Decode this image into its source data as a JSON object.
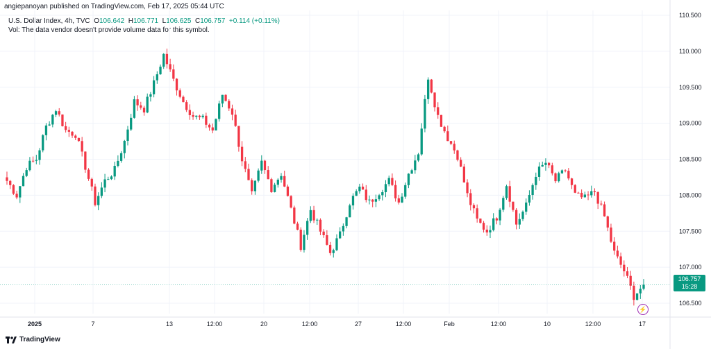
{
  "header": {
    "published": "angiepanoyan published on TradingView.com, Feb 17, 2025 05:44 UTC"
  },
  "legend": {
    "symbol": "U.S. Dollar Index, 4h, TVC",
    "open_label": "O",
    "open": "106.642",
    "high_label": "H",
    "high": "106.771",
    "low_label": "L",
    "low": "106.625",
    "close_label": "C",
    "close": "106.757",
    "change": "+0.114 (+0.11%)",
    "volume_note": "Vol: The data vendor doesn't provide volume data for this symbol."
  },
  "price_tag": {
    "price": "106.757",
    "countdown": "15:28"
  },
  "footer": {
    "brand": "TradingView"
  },
  "colors": {
    "up": "#089981",
    "down": "#f23645",
    "grid": "#f0f3fa",
    "text": "#131722"
  },
  "chart_data": {
    "type": "candlestick",
    "y_axis_ticks": [
      "110.500",
      "110.000",
      "109.500",
      "109.000",
      "108.500",
      "108.000",
      "107.500",
      "107.000",
      "106.500"
    ],
    "y_axis_tick_values": [
      110.5,
      110.0,
      109.5,
      109.0,
      108.5,
      108.0,
      107.5,
      107.0,
      106.5
    ],
    "x_axis_ticks": [
      "2025",
      "7",
      "13",
      "12:00",
      "20",
      "12:00",
      "27",
      "12:00",
      "Feb",
      "12:00",
      "10",
      "12:00",
      "17"
    ],
    "ylim": [
      106.25,
      110.75
    ],
    "last_price": 106.757,
    "close_path": [
      108.2,
      108.0,
      108.4,
      108.5,
      108.95,
      109.2,
      108.9,
      108.85,
      108.4,
      107.9,
      108.2,
      108.35,
      108.75,
      109.3,
      109.2,
      109.55,
      109.95,
      109.6,
      109.3,
      109.1,
      109.05,
      108.9,
      109.4,
      109.15,
      108.5,
      108.0,
      108.45,
      108.1,
      108.3,
      107.8,
      107.3,
      107.8,
      107.5,
      107.2,
      107.45,
      107.9,
      108.1,
      107.9,
      108.05,
      108.2,
      107.9,
      108.3,
      108.6,
      109.65,
      109.1,
      108.8,
      108.55,
      108.0,
      107.65,
      107.5,
      107.7,
      108.15,
      107.6,
      107.85,
      108.3,
      108.45,
      108.2,
      108.35,
      108.0,
      107.95,
      108.05,
      107.7,
      107.2,
      106.95,
      106.6,
      106.757
    ]
  }
}
